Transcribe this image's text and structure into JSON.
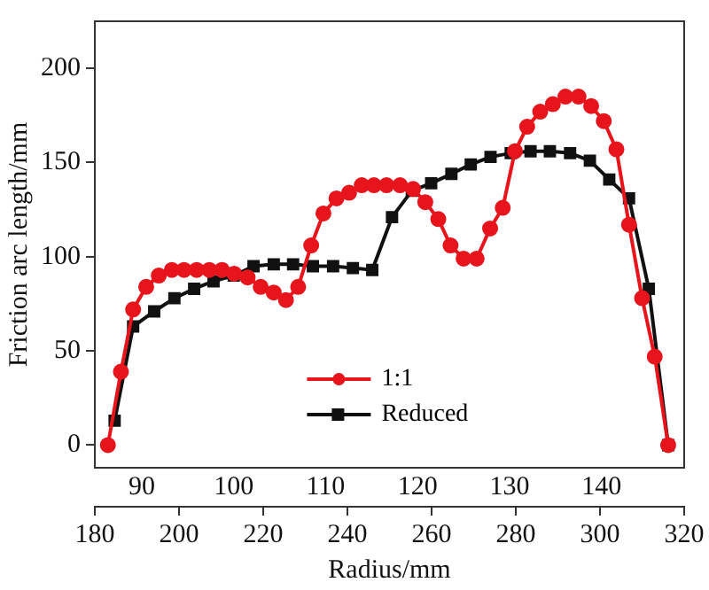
{
  "chart_data": {
    "type": "line",
    "xlabel": "Radius/mm",
    "ylabel": "Friction arc length/mm",
    "xlim": [
      180,
      320
    ],
    "xticks": [
      180,
      200,
      220,
      240,
      260,
      280,
      300,
      320
    ],
    "x2lim": [
      84.9,
      149
    ],
    "x2ticks": [
      90,
      100,
      110,
      120,
      130,
      140
    ],
    "ylim": [
      -12,
      225
    ],
    "yticks": [
      0,
      50,
      100,
      150,
      200
    ],
    "grid": false,
    "legend": "bottom",
    "line_style": "solid",
    "series": [
      {
        "name": "1:1",
        "color": "#e8141c",
        "marker": "circle",
        "x": [
          183.1,
          186.2,
          189.1,
          192.2,
          195.2,
          198.3,
          201.2,
          204.2,
          207.2,
          210.2,
          213.1,
          216.3,
          219.4,
          222.5,
          225.4,
          228.3,
          231.4,
          234.3,
          237.4,
          240.4,
          243.4,
          246.3,
          249.3,
          252.5,
          255.6,
          258.5,
          261.6,
          264.5,
          267.6,
          270.7,
          273.9,
          276.9,
          279.8,
          282.7,
          285.8,
          288.8,
          291.8,
          294.9,
          297.9,
          300.9,
          303.9,
          306.9,
          310,
          313,
          316.2
        ],
        "values": [
          0,
          39,
          72,
          84,
          90,
          93,
          93,
          93,
          93,
          93,
          91,
          89,
          84,
          81,
          77,
          84,
          106,
          123,
          131,
          134,
          138,
          138,
          138,
          138,
          136,
          129,
          120,
          106,
          99,
          99,
          115,
          126,
          156,
          169,
          177,
          181,
          185,
          185,
          180,
          172,
          157,
          117,
          78,
          47,
          0
        ]
      },
      {
        "name": "Reduced",
        "color": "#111111",
        "marker": "square",
        "x": [
          184.7,
          189.1,
          194.1,
          198.9,
          203.6,
          208.2,
          213,
          217.7,
          222.5,
          227.1,
          231.8,
          236.6,
          241.3,
          245.9,
          250.6,
          255.3,
          259.9,
          264.7,
          269.3,
          274,
          278.8,
          283.5,
          288.1,
          292.9,
          297.6,
          302.2,
          306.9,
          311.6,
          316.2
        ],
        "values": [
          13,
          63,
          71,
          78,
          83,
          87,
          90,
          95,
          96,
          96,
          95,
          95,
          94,
          93,
          121,
          135,
          139,
          144,
          149,
          153,
          155,
          156,
          156,
          155,
          151,
          141,
          131,
          83,
          0
        ]
      }
    ]
  }
}
